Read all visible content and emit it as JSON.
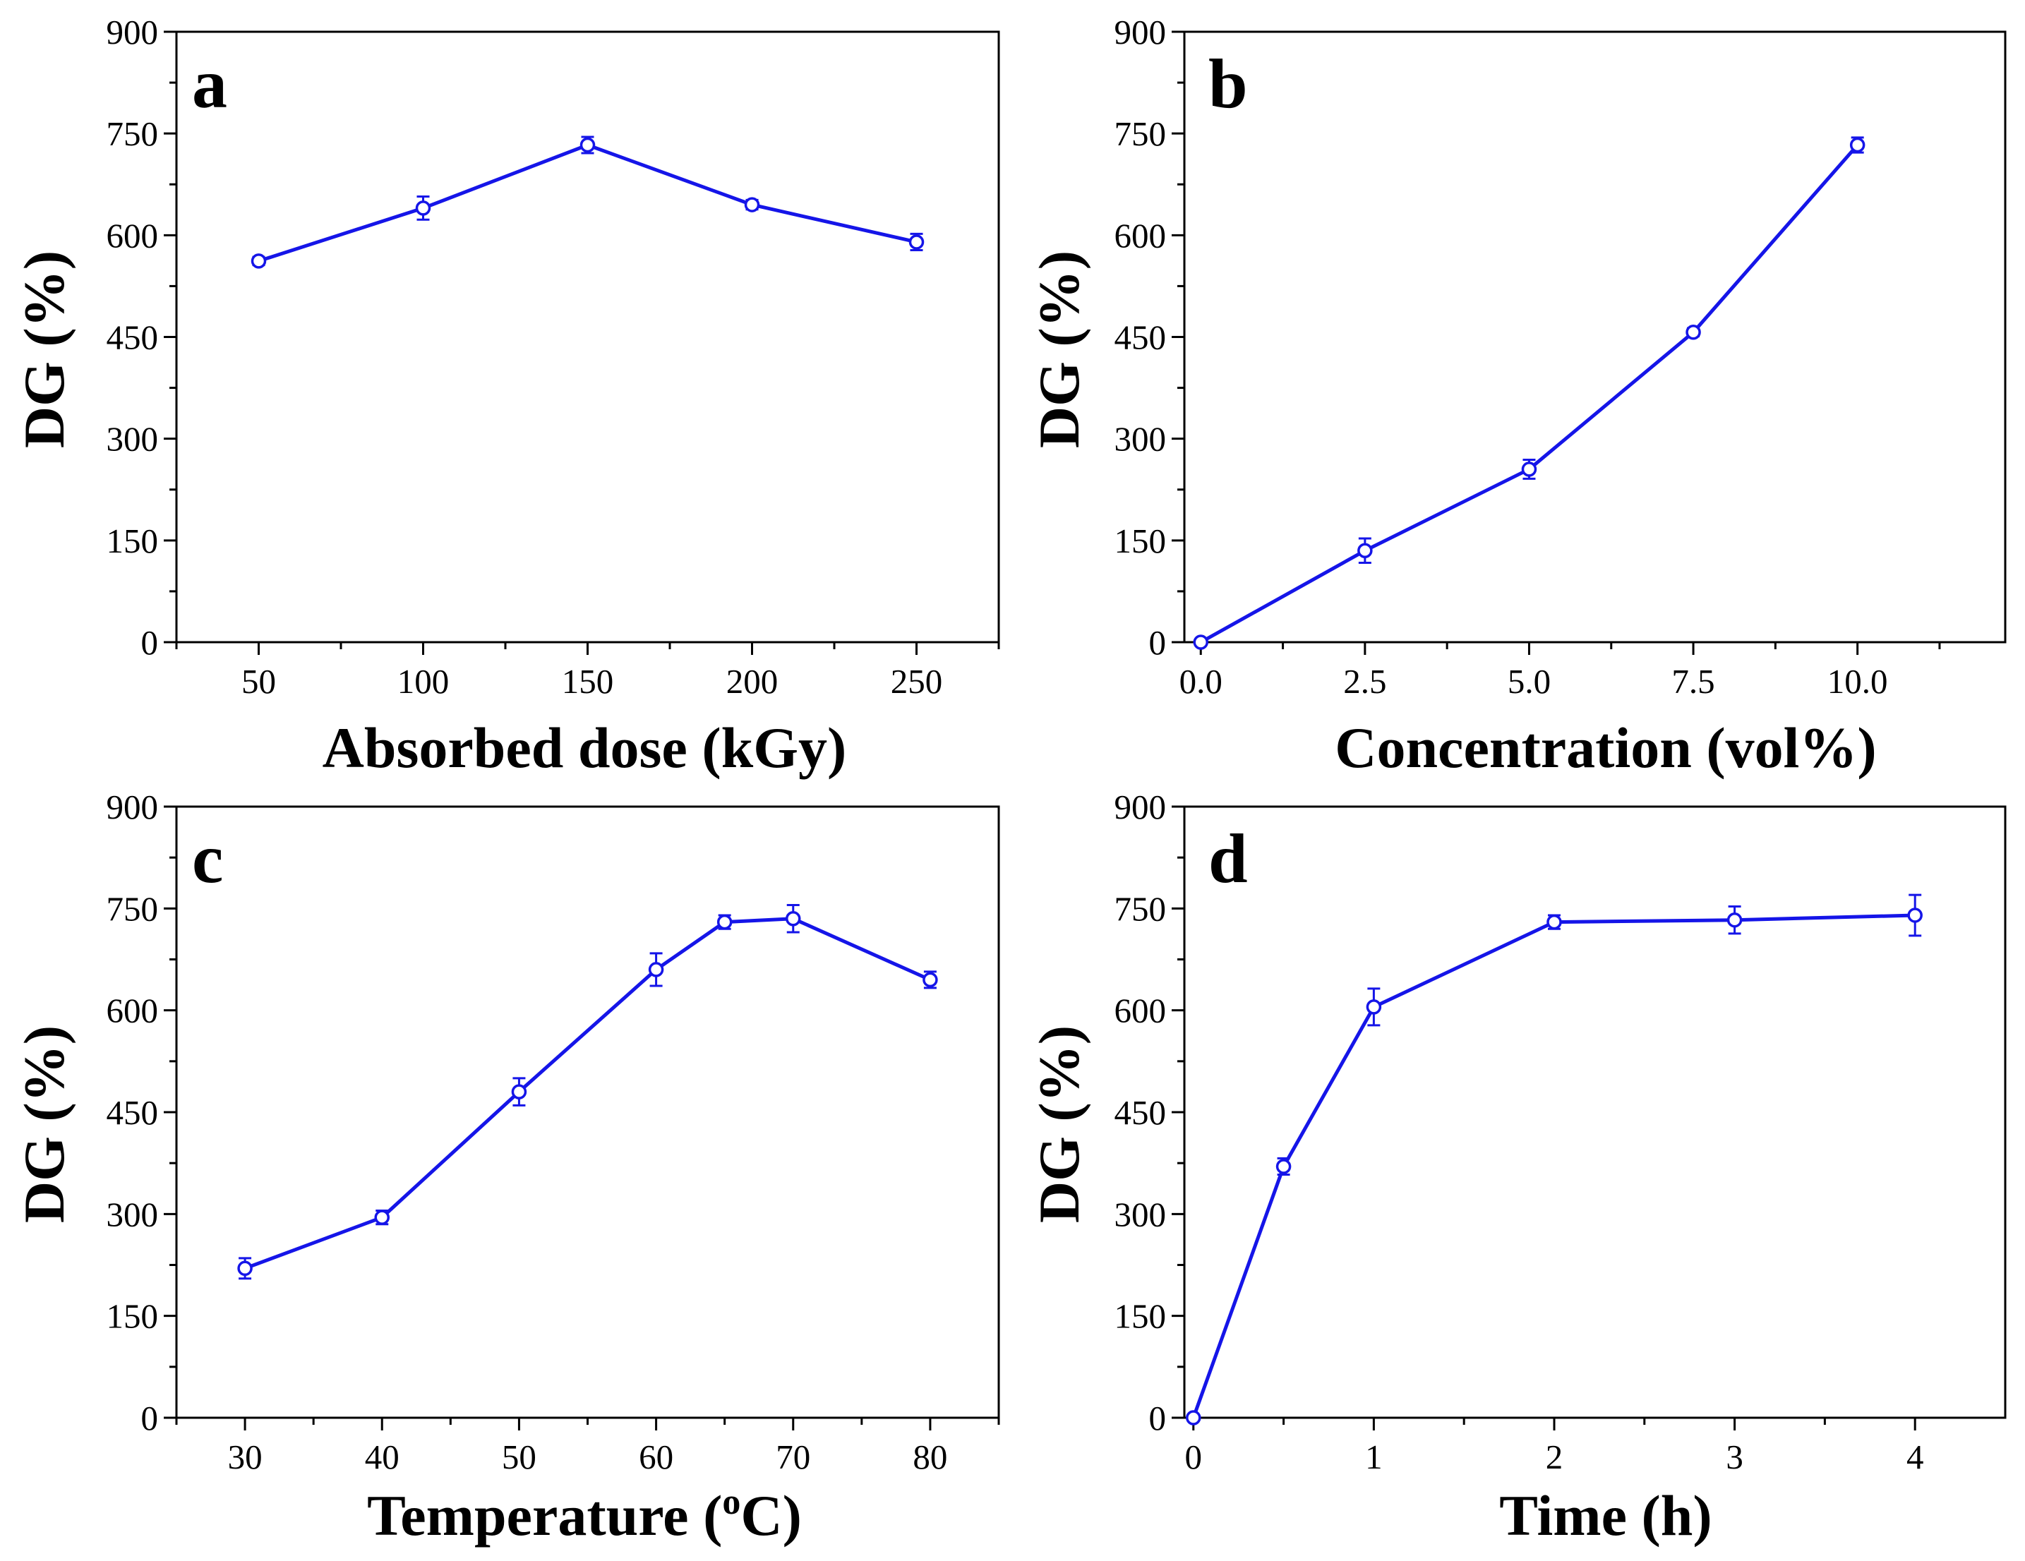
{
  "figure_colors": {
    "series": "#1515e8",
    "axis": "#000000",
    "background": "#ffffff"
  },
  "chart_data": [
    {
      "panel": "a",
      "type": "line",
      "xlabel": "Absorbed dose (kGy)",
      "ylabel": "DG (%)",
      "xlim": [
        25,
        275
      ],
      "ylim": [
        0,
        900
      ],
      "xticks": [
        50,
        100,
        150,
        200,
        250
      ],
      "xtick_labels": [
        "50",
        "100",
        "150",
        "200",
        "250"
      ],
      "yticks": [
        0,
        150,
        300,
        450,
        600,
        750,
        900
      ],
      "ytick_labels": [
        "0",
        "150",
        "300",
        "450",
        "600",
        "750",
        "900"
      ],
      "x_minor": [
        25,
        75,
        125,
        175,
        225,
        275
      ],
      "grid": false,
      "series": [
        {
          "name": "DG",
          "x": [
            50,
            100,
            150,
            200,
            250
          ],
          "y": [
            562,
            640,
            733,
            645,
            590
          ],
          "err": [
            6,
            17,
            12,
            7,
            12
          ]
        }
      ]
    },
    {
      "panel": "b",
      "type": "line",
      "xlabel": "Concentration (vol%)",
      "ylabel": "DG (%)",
      "xlim": [
        -0.25,
        12.25
      ],
      "ylim": [
        0,
        900
      ],
      "xticks": [
        0,
        2.5,
        5,
        7.5,
        10
      ],
      "xtick_labels": [
        "0.0",
        "2.5",
        "5.0",
        "7.5",
        "10.0"
      ],
      "yticks": [
        0,
        150,
        300,
        450,
        600,
        750,
        900
      ],
      "ytick_labels": [
        "0",
        "150",
        "300",
        "450",
        "600",
        "750",
        "900"
      ],
      "x_minor": [
        1.25,
        3.75,
        6.25,
        8.75,
        11.25
      ],
      "grid": false,
      "series": [
        {
          "name": "DG",
          "x": [
            0,
            2.5,
            5,
            7.5,
            10
          ],
          "y": [
            0,
            135,
            255,
            457,
            733
          ],
          "err": [
            3,
            18,
            14,
            6,
            11
          ]
        }
      ]
    },
    {
      "panel": "c",
      "type": "line",
      "xlabel_parts": [
        "Temperature (",
        "o",
        "C)"
      ],
      "ylabel": "DG (%)",
      "xlim": [
        25,
        85
      ],
      "ylim": [
        0,
        900
      ],
      "xticks": [
        30,
        40,
        50,
        60,
        70,
        80
      ],
      "xtick_labels": [
        "30",
        "40",
        "50",
        "60",
        "70",
        "80"
      ],
      "yticks": [
        0,
        150,
        300,
        450,
        600,
        750,
        900
      ],
      "ytick_labels": [
        "0",
        "150",
        "300",
        "450",
        "600",
        "750",
        "900"
      ],
      "x_minor": [
        25,
        35,
        45,
        55,
        65,
        75,
        85
      ],
      "grid": false,
      "series": [
        {
          "name": "DG",
          "x": [
            30,
            40,
            50,
            60,
            65,
            70,
            80
          ],
          "y": [
            220,
            295,
            480,
            660,
            730,
            735,
            645
          ],
          "err": [
            15,
            10,
            20,
            24,
            10,
            20,
            12
          ]
        }
      ]
    },
    {
      "panel": "d",
      "type": "line",
      "xlabel": "Time (h)",
      "ylabel": "DG (%)",
      "xlim": [
        -0.05,
        4.5
      ],
      "ylim": [
        0,
        900
      ],
      "xticks": [
        0,
        1,
        2,
        3,
        4
      ],
      "xtick_labels": [
        "0",
        "1",
        "2",
        "3",
        "4"
      ],
      "yticks": [
        0,
        150,
        300,
        450,
        600,
        750,
        900
      ],
      "ytick_labels": [
        "0",
        "150",
        "300",
        "450",
        "600",
        "750",
        "900"
      ],
      "x_minor": [
        0.5,
        1.5,
        2.5,
        3.5
      ],
      "grid": false,
      "series": [
        {
          "name": "DG",
          "x": [
            0,
            0.5,
            1,
            2,
            3,
            4
          ],
          "y": [
            0,
            370,
            605,
            730,
            733,
            740
          ],
          "err": [
            3,
            12,
            27,
            10,
            20,
            30
          ]
        }
      ]
    }
  ]
}
